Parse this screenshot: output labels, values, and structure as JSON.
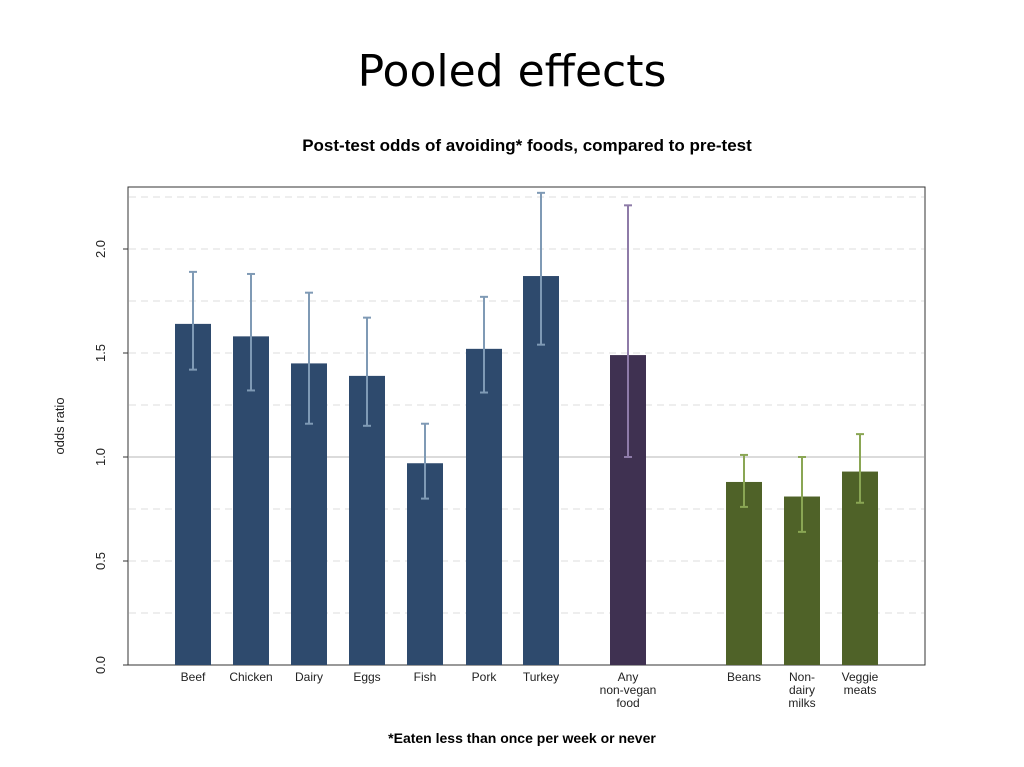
{
  "slide": {
    "title": "Pooled effects"
  },
  "chart_data": {
    "type": "bar",
    "title": "Post-test odds of avoiding* foods, compared to pre-test",
    "xlabel": "",
    "ylabel": "odds ratio",
    "footnote": "*Eaten less than once per week or never",
    "ylim": [
      0,
      2.3
    ],
    "yticks": [
      "0.0",
      "0.5",
      "1.0",
      "1.5",
      "2.0"
    ],
    "grid": true,
    "reference_line": 1.0,
    "colors": {
      "animal": "#2e4a6d",
      "animal_error": "#7f9ab5",
      "any": "#3f3151",
      "any_error": "#8e7ba8",
      "plant": "#4f6228",
      "plant_error": "#8aa654"
    },
    "categories": [
      {
        "label": [
          "Beef"
        ],
        "value": 1.64,
        "ci_low": 1.42,
        "ci_high": 1.89,
        "group": "animal"
      },
      {
        "label": [
          "Chicken"
        ],
        "value": 1.58,
        "ci_low": 1.32,
        "ci_high": 1.88,
        "group": "animal"
      },
      {
        "label": [
          "Dairy"
        ],
        "value": 1.45,
        "ci_low": 1.16,
        "ci_high": 1.79,
        "group": "animal"
      },
      {
        "label": [
          "Eggs"
        ],
        "value": 1.39,
        "ci_low": 1.15,
        "ci_high": 1.67,
        "group": "animal"
      },
      {
        "label": [
          "Fish"
        ],
        "value": 0.97,
        "ci_low": 0.8,
        "ci_high": 1.16,
        "group": "animal"
      },
      {
        "label": [
          "Pork"
        ],
        "value": 1.52,
        "ci_low": 1.31,
        "ci_high": 1.77,
        "group": "animal"
      },
      {
        "label": [
          "Turkey"
        ],
        "value": 1.87,
        "ci_low": 1.54,
        "ci_high": 2.27,
        "group": "animal"
      },
      {
        "label": [
          "Any",
          "non-vegan",
          "food"
        ],
        "value": 1.49,
        "ci_low": 1.0,
        "ci_high": 2.21,
        "group": "any"
      },
      {
        "label": [
          "Beans"
        ],
        "value": 0.88,
        "ci_low": 0.76,
        "ci_high": 1.01,
        "group": "plant"
      },
      {
        "label": [
          "Non-",
          "dairy",
          "milks"
        ],
        "value": 0.81,
        "ci_low": 0.64,
        "ci_high": 1.0,
        "group": "plant"
      },
      {
        "label": [
          "Veggie",
          "meats"
        ],
        "value": 0.93,
        "ci_low": 0.78,
        "ci_high": 1.11,
        "group": "plant"
      }
    ]
  }
}
